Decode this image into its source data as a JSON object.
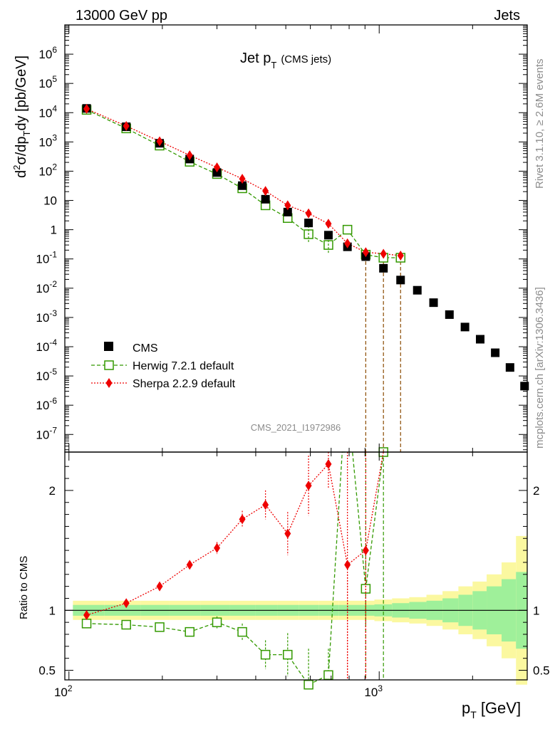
{
  "header": {
    "left": "13000 GeV pp",
    "right": "Jets"
  },
  "side_labels": {
    "top": "Rivet 3.1.10, ≥ 2.6M events",
    "bottom": "mcplots.cern.ch [arXiv:1306.3436]"
  },
  "chart_data": [
    {
      "type": "scatter",
      "panel": "main",
      "title_main": "Jet p",
      "title_sub": "T",
      "title_note": "(CMS jets)",
      "ylabel": "d²σ/dp_T dy [pb/GeV]",
      "yscale": "log",
      "ylim": [
        2.5e-08,
        10000000.0
      ],
      "xlim": [
        97,
        3000
      ],
      "xscale": "log",
      "watermark": "CMS_2021_I1972986",
      "legend_position": "bottom-left",
      "series": [
        {
          "name": "CMS",
          "color": "#000000",
          "marker": "square",
          "x": [
            114,
            153,
            196,
            245,
            300,
            362,
            430,
            507,
            592,
            686,
            790,
            905,
            1032,
            1172,
            1327,
            1497,
            1684,
            1890,
            2116,
            2366,
            2640,
            2941
          ],
          "y": [
            14000,
            3300,
            900,
            260,
            90,
            32,
            11,
            4,
            1.7,
            0.65,
            0.26,
            0.12,
            0.048,
            0.019,
            0.0085,
            0.0032,
            0.00125,
            0.00047,
            0.00018,
            6.2e-05,
            1.95e-05,
            4.5e-06
          ]
        },
        {
          "name": "Herwig 7.2.1 default",
          "color": "#339900",
          "marker": "open-square",
          "line": "dashed",
          "x": [
            114,
            153,
            196,
            245,
            300,
            362,
            430,
            507,
            592,
            686,
            790,
            905,
            1032,
            1172
          ],
          "y": [
            12500,
            2900,
            750,
            210,
            80,
            26,
            6.8,
            2.5,
            0.7,
            0.3,
            1.0,
            0.14,
            0.11,
            0.11
          ]
        },
        {
          "name": "Sherpa 2.2.9 default",
          "color": "#ee0000",
          "marker": "diamond",
          "line": "dotted",
          "x": [
            114,
            153,
            196,
            245,
            300,
            362,
            430,
            507,
            592,
            686,
            790,
            905,
            1032,
            1172
          ],
          "y": [
            13500,
            3500,
            1050,
            350,
            135,
            55,
            21,
            6.8,
            3.6,
            1.6,
            0.34,
            0.17,
            0.15,
            0.13
          ]
        }
      ]
    },
    {
      "type": "scatter",
      "panel": "ratio",
      "ylabel": "Ratio to CMS",
      "xlabel_main": "p",
      "xlabel_sub": "T",
      "xlabel_unit": "[GeV]",
      "ylim": [
        0.42,
        2.32
      ],
      "xlim": [
        97,
        3000
      ],
      "xscale": "log",
      "ytick_labels": [
        "0.5",
        "1",
        "2"
      ],
      "series": [
        {
          "name": "Herwig 7.2.1 default",
          "x": [
            114,
            153,
            196,
            245,
            300,
            362,
            430,
            507,
            592,
            686,
            905
          ],
          "y": [
            0.89,
            0.88,
            0.86,
            0.82,
            0.9,
            0.82,
            0.63,
            0.63,
            0.38,
            0.46,
            1.18
          ]
        },
        {
          "name": "Sherpa 2.2.9 default",
          "x": [
            114,
            153,
            196,
            245,
            300,
            362,
            430,
            507,
            592,
            686,
            790,
            905
          ],
          "y": [
            0.96,
            1.06,
            1.2,
            1.38,
            1.52,
            1.76,
            1.88,
            1.64,
            2.04,
            2.22,
            1.38,
            1.5
          ]
        }
      ],
      "band_edges": [
        103,
        130,
        170,
        210,
        265,
        330,
        400,
        470,
        550,
        640,
        740,
        850,
        965,
        1100,
        1250,
        1420,
        1600,
        1800,
        2000,
        2220,
        2480,
        2760,
        3000
      ],
      "band_green": [
        0.045,
        0.045,
        0.045,
        0.045,
        0.045,
        0.045,
        0.045,
        0.045,
        0.045,
        0.045,
        0.045,
        0.045,
        0.05,
        0.06,
        0.07,
        0.08,
        0.1,
        0.13,
        0.16,
        0.2,
        0.26,
        0.32
      ],
      "band_yellow": [
        0.08,
        0.08,
        0.08,
        0.08,
        0.08,
        0.08,
        0.08,
        0.08,
        0.08,
        0.08,
        0.08,
        0.08,
        0.09,
        0.1,
        0.11,
        0.13,
        0.16,
        0.2,
        0.24,
        0.3,
        0.4,
        0.62
      ]
    }
  ]
}
